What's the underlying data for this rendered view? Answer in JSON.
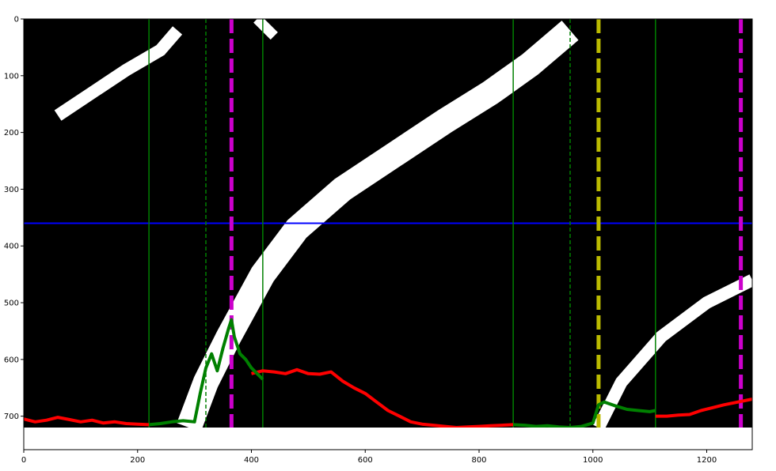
{
  "chart_data": {
    "type": "line",
    "title": "",
    "xlabel": "",
    "ylabel": "",
    "xlim": [
      0,
      1280
    ],
    "ylim": [
      720,
      0
    ],
    "y_inverted": true,
    "grid": false,
    "image_extent": {
      "x": [
        0,
        1280
      ],
      "y": [
        0,
        720
      ]
    },
    "x_ticks": [
      0,
      200,
      400,
      600,
      800,
      1000,
      1200
    ],
    "y_ticks": [
      0,
      100,
      200,
      300,
      400,
      500,
      600,
      700
    ],
    "background": "binary thresholded lane image (white lane pixels on black)",
    "lane_bands": [
      {
        "name": "left-lane-diagonal",
        "points": [
          [
            290,
            720
          ],
          [
            320,
            640
          ],
          [
            360,
            560
          ],
          [
            420,
            450
          ],
          [
            480,
            370
          ],
          [
            560,
            300
          ],
          [
            650,
            240
          ],
          [
            740,
            180
          ],
          [
            820,
            130
          ],
          [
            890,
            80
          ],
          [
            960,
            20
          ]
        ],
        "width": 45
      },
      {
        "name": "right-lane-curve",
        "points": [
          [
            1010,
            720
          ],
          [
            1050,
            640
          ],
          [
            1120,
            560
          ],
          [
            1200,
            500
          ],
          [
            1280,
            460
          ]
        ],
        "width": 22
      },
      {
        "name": "upper-left-streak",
        "points": [
          [
            60,
            170
          ],
          [
            120,
            130
          ],
          [
            180,
            90
          ],
          [
            240,
            55
          ],
          [
            270,
            20
          ]
        ],
        "width": 22
      },
      {
        "name": "top-streak",
        "points": [
          [
            410,
            0
          ],
          [
            440,
            30
          ]
        ],
        "width": 18
      }
    ],
    "horizontal_line": {
      "y": 360,
      "color": "#0000ff"
    },
    "vertical_lines": [
      {
        "x": 220,
        "style": "solid",
        "color": "#008000"
      },
      {
        "x": 320,
        "style": "dashed",
        "color": "#008000"
      },
      {
        "x": 420,
        "style": "solid",
        "color": "#008000"
      },
      {
        "x": 860,
        "style": "solid",
        "color": "#008000"
      },
      {
        "x": 960,
        "style": "dashed",
        "color": "#008000"
      },
      {
        "x": 1110,
        "style": "solid",
        "color": "#008000"
      },
      {
        "x": 365,
        "style": "thick-dashed",
        "color": "#cc00cc"
      },
      {
        "x": 1260,
        "style": "thick-dashed",
        "color": "#cc00cc"
      },
      {
        "x": 1010,
        "style": "thick-dashed",
        "color": "#bbbb00"
      }
    ],
    "series": [
      {
        "color": "#ff0000",
        "x": [
          0,
          20,
          40,
          60,
          80,
          100,
          120,
          140,
          160,
          180,
          200,
          220,
          400,
          420,
          440,
          460,
          480,
          500,
          520,
          540,
          560,
          580,
          600,
          620,
          640,
          660,
          680,
          700,
          720,
          740,
          760,
          780,
          800,
          820,
          840,
          860,
          1110,
          1130,
          1150,
          1170,
          1190,
          1210,
          1230,
          1250,
          1270,
          1280
        ],
        "y": [
          705,
          710,
          707,
          702,
          706,
          710,
          707,
          712,
          710,
          713,
          714,
          715,
          625,
          620,
          622,
          625,
          618,
          625,
          626,
          622,
          638,
          650,
          660,
          675,
          690,
          700,
          710,
          714,
          716,
          718,
          720,
          719,
          718,
          717,
          716,
          715,
          700,
          700,
          698,
          697,
          690,
          685,
          680,
          676,
          672,
          670
        ]
      },
      {
        "color": "#008000",
        "x": [
          220,
          240,
          260,
          280,
          300,
          310,
          320,
          330,
          340,
          350,
          360,
          365,
          370,
          380,
          390,
          400,
          410,
          420,
          860,
          880,
          900,
          920,
          940,
          960,
          980,
          1000,
          1010,
          1020,
          1040,
          1060,
          1080,
          1100,
          1110
        ],
        "y": [
          715,
          713,
          710,
          708,
          710,
          660,
          615,
          590,
          620,
          580,
          545,
          530,
          560,
          590,
          600,
          615,
          625,
          635,
          715,
          716,
          718,
          717,
          719,
          720,
          718,
          712,
          680,
          675,
          682,
          688,
          690,
          692,
          690
        ]
      }
    ]
  }
}
